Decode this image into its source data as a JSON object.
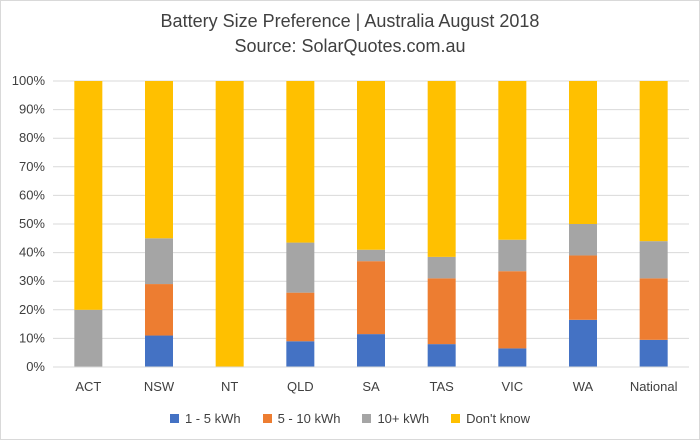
{
  "chart_data": {
    "type": "bar",
    "stacked": true,
    "title_line1": "Battery Size Preference  | Australia August 2018",
    "title_line2": "Source: SolarQuotes.com.au",
    "categories": [
      "ACT",
      "NSW",
      "NT",
      "QLD",
      "SA",
      "TAS",
      "VIC",
      "WA",
      "National"
    ],
    "ylim": [
      0,
      100
    ],
    "y_ticks": [
      "0%",
      "10%",
      "20%",
      "30%",
      "40%",
      "50%",
      "60%",
      "70%",
      "80%",
      "90%",
      "100%"
    ],
    "grid": true,
    "legend_position": "bottom",
    "series": [
      {
        "name": "1 - 5 kWh",
        "color": "#4472c4",
        "values": [
          0,
          11,
          0,
          9,
          11.5,
          8,
          6.5,
          16.5,
          9.5
        ]
      },
      {
        "name": "5 - 10 kWh",
        "color": "#ed7d31",
        "values": [
          0,
          18,
          0,
          17,
          25.5,
          23,
          27,
          22.5,
          21.5
        ]
      },
      {
        "name": "10+ kWh",
        "color": "#a5a5a5",
        "values": [
          20,
          16,
          0,
          17.5,
          4,
          7.5,
          11,
          11,
          13
        ]
      },
      {
        "name": "Don't know",
        "color": "#ffc000",
        "values": [
          80,
          55,
          100,
          56.5,
          59,
          61.5,
          55.5,
          50,
          56
        ]
      }
    ]
  }
}
